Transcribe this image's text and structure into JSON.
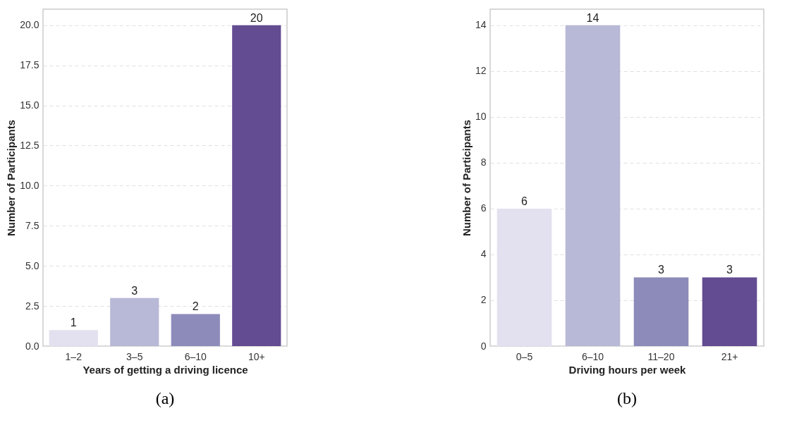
{
  "chart_data": [
    {
      "type": "bar",
      "xlabel": "Years of getting a driving licence",
      "ylabel": "Number of Participants",
      "categories": [
        "1–2",
        "3–5",
        "6–10",
        "10+"
      ],
      "values": [
        1,
        3,
        2,
        20
      ],
      "colors": [
        "#e3e1ef",
        "#b8b8d7",
        "#8d8bba",
        "#634c91"
      ],
      "ylim": [
        0,
        21
      ],
      "yticks": [
        {
          "value": 0,
          "label": "0.0"
        },
        {
          "value": 2.5,
          "label": "2.5"
        },
        {
          "value": 5,
          "label": "5.0"
        },
        {
          "value": 7.5,
          "label": "7.5"
        },
        {
          "value": 10,
          "label": "10.0"
        },
        {
          "value": 12.5,
          "label": "12.5"
        },
        {
          "value": 15,
          "label": "15.0"
        },
        {
          "value": 17.5,
          "label": "17.5"
        },
        {
          "value": 20,
          "label": "20.0"
        }
      ],
      "grid": "y",
      "data_labels": true,
      "annotations": [
        "(a)"
      ]
    },
    {
      "type": "bar",
      "xlabel": "Driving hours per week",
      "ylabel": "Number of Participants",
      "categories": [
        "0–5",
        "6–10",
        "11–20",
        "21+"
      ],
      "values": [
        6,
        14,
        3,
        3
      ],
      "colors": [
        "#e3e1ef",
        "#b8b8d7",
        "#8d8bba",
        "#634c91"
      ],
      "ylim": [
        0,
        14.7
      ],
      "yticks": [
        0,
        2,
        4,
        6,
        8,
        10,
        12,
        14
      ],
      "grid": "y",
      "data_labels": true,
      "annotations": [
        "(b)"
      ]
    }
  ]
}
